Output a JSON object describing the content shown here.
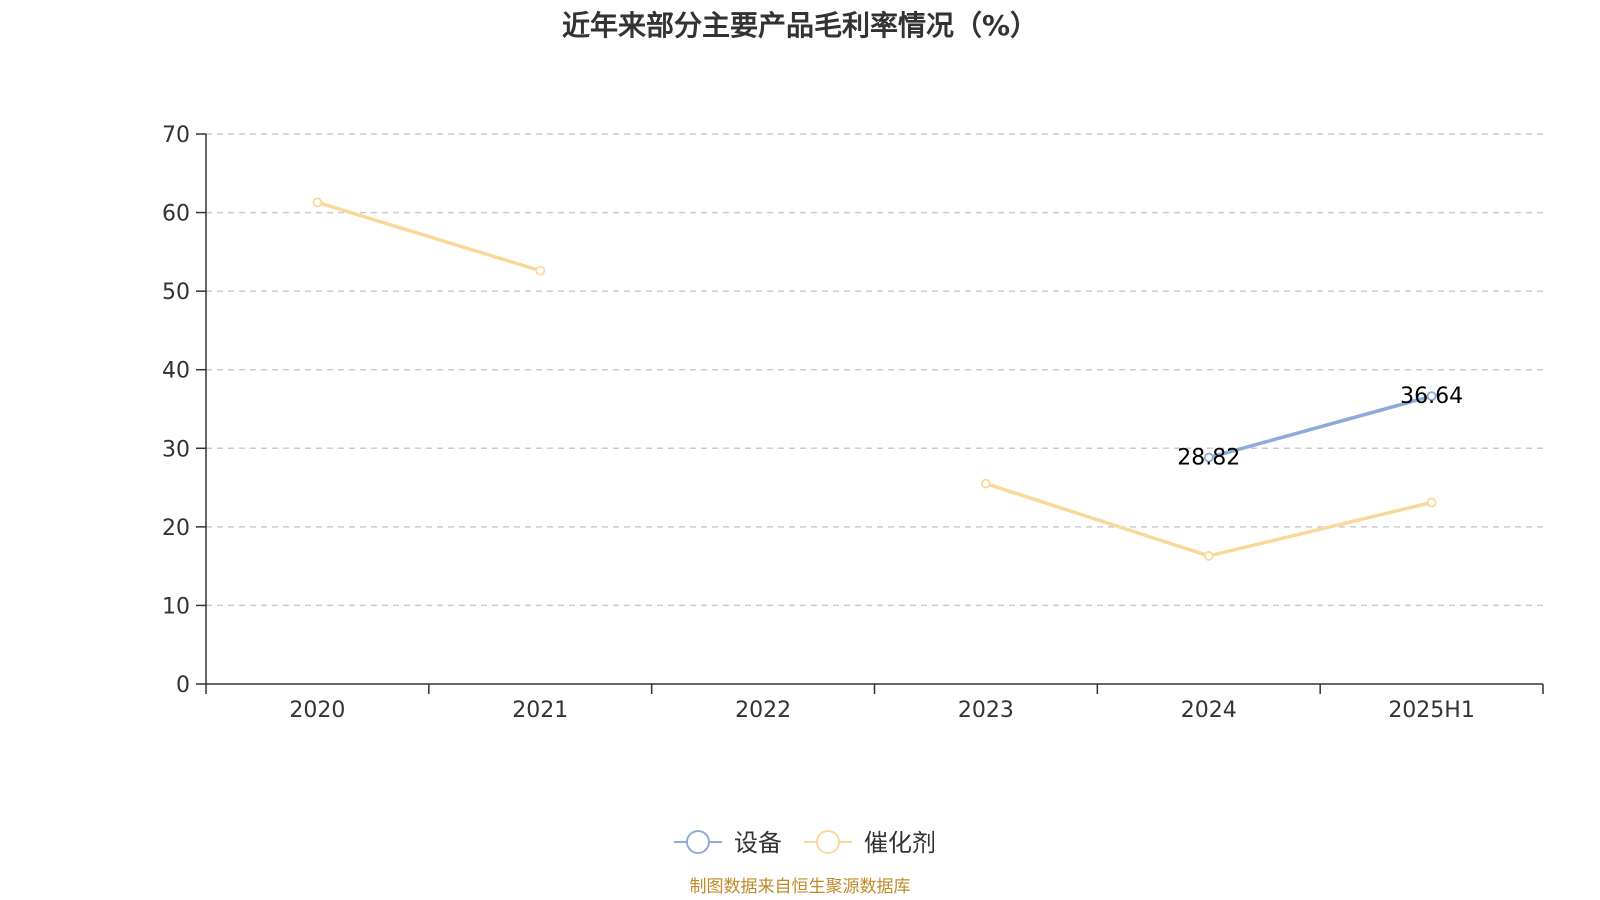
{
  "chart_data": {
    "type": "line",
    "title": "近年来部分主要产品毛利率情况（%）",
    "categories": [
      "2020",
      "2021",
      "2022",
      "2023",
      "2024",
      "2025H1"
    ],
    "ylim": [
      0,
      70
    ],
    "yticks": [
      0,
      10,
      20,
      30,
      40,
      50,
      60,
      70
    ],
    "grid": true,
    "legend_position": "bottom-center",
    "series": [
      {
        "name": "设备",
        "color": "#8eaad8",
        "values": [
          null,
          null,
          null,
          null,
          28.82,
          36.64
        ],
        "show_labels": true
      },
      {
        "name": "催化剂",
        "color": "#f8d99a",
        "values": [
          61.3,
          52.6,
          null,
          25.5,
          16.3,
          23.1
        ],
        "show_labels": false
      }
    ]
  },
  "source": "制图数据来自恒生聚源数据库"
}
